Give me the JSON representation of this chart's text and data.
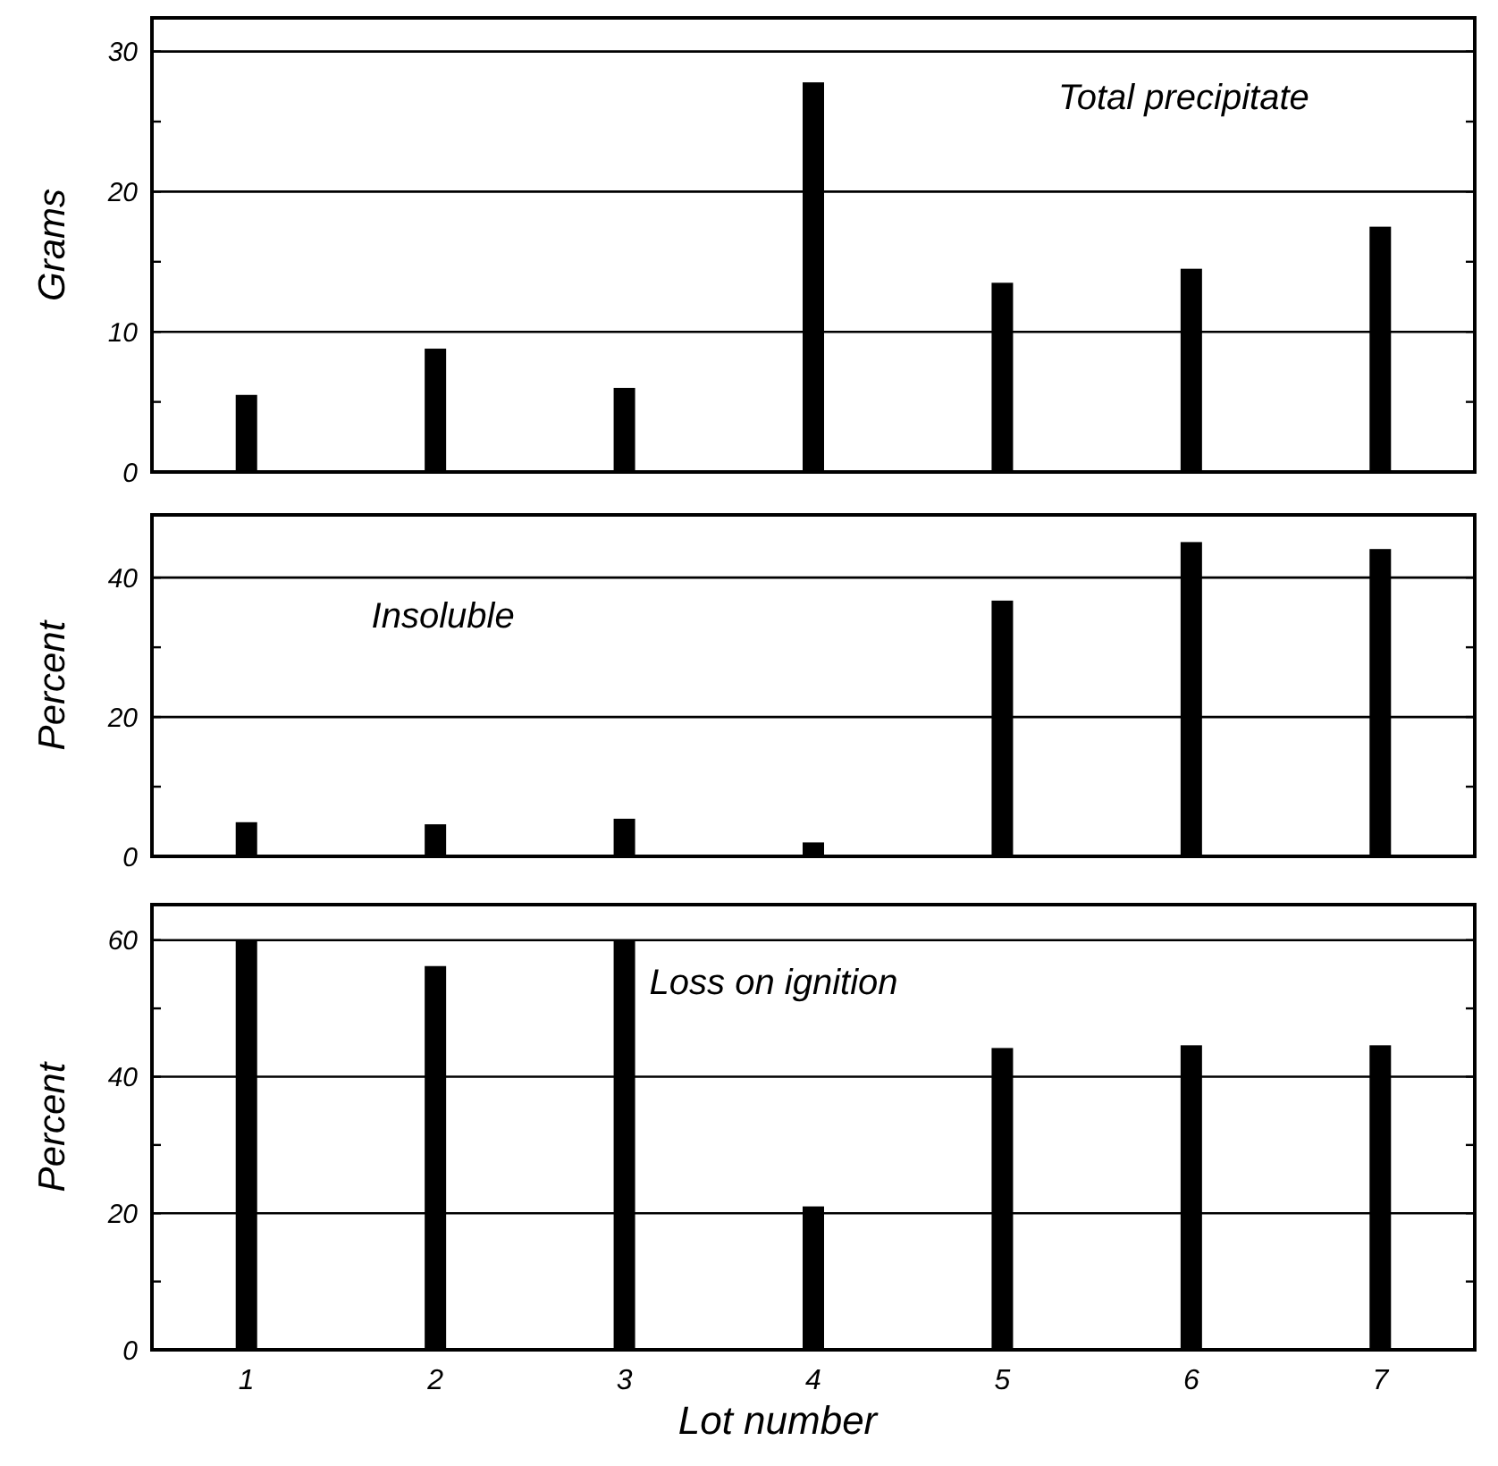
{
  "chart_data": [
    {
      "type": "bar",
      "title": "Total precipitate",
      "ylabel": "Grams",
      "categories": [
        null,
        null,
        null,
        null,
        null,
        null,
        null
      ],
      "values": [
        5.5,
        8.8,
        6.0,
        27.8,
        13.5,
        14.5,
        17.5
      ],
      "color": "#000000",
      "ylim": [
        0,
        32.4
      ],
      "yticks": [
        0,
        {
          "value": 5,
          "label": null
        },
        10,
        {
          "value": 15,
          "label": null
        },
        20,
        {
          "value": 25,
          "label": null
        },
        30
      ],
      "grid": "y",
      "tick_labels": "y"
    },
    {
      "type": "bar",
      "title": "Insoluble",
      "ylabel": "Percent",
      "categories": [
        null,
        null,
        null,
        null,
        null,
        null,
        null
      ],
      "values": [
        4.9,
        4.6,
        5.4,
        2.0,
        36.7,
        45.1,
        44.1
      ],
      "color": "#000000",
      "ylim": [
        0,
        49
      ],
      "yticks": [
        0,
        {
          "value": 10,
          "label": null
        },
        20,
        {
          "value": 30,
          "label": null
        },
        40
      ],
      "grid": "y",
      "tick_labels": "y"
    },
    {
      "type": "bar",
      "title": "Loss on ignition",
      "ylabel": "Percent",
      "xlabel": "Lot number",
      "categories": [
        "1",
        "2",
        "3",
        "4",
        "5",
        "6",
        "7"
      ],
      "values": [
        60,
        56.2,
        60,
        21,
        44.2,
        44.6,
        44.6
      ],
      "color": "#000000",
      "ylim": [
        0,
        65.2
      ],
      "yticks": [
        0,
        {
          "value": 10,
          "label": null
        },
        20,
        {
          "value": 30,
          "label": null
        },
        40,
        {
          "value": 50,
          "label": null
        },
        60
      ],
      "grid": "y"
    }
  ]
}
